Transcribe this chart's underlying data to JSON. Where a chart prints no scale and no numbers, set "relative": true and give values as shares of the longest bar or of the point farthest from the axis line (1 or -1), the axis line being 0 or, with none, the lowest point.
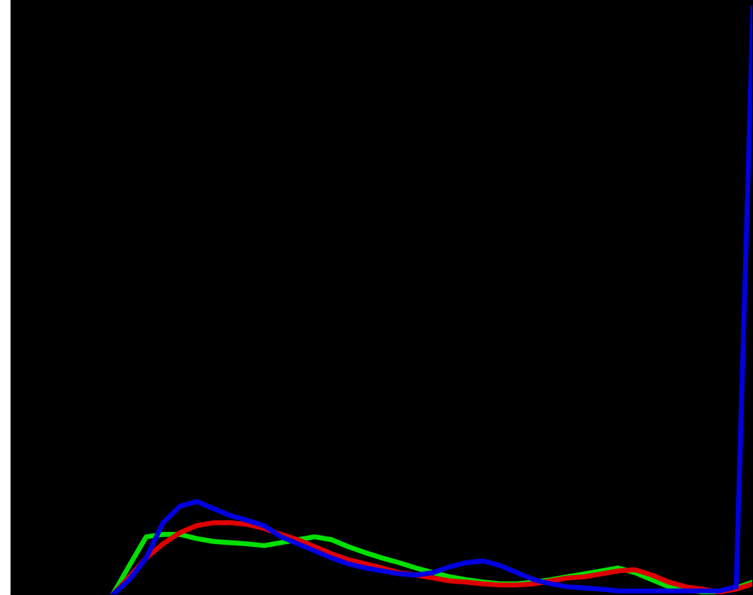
{
  "chart_data": {
    "type": "line",
    "relative": true,
    "categories": [
      null,
      null,
      null,
      null,
      null,
      null,
      null,
      null,
      null,
      null,
      null,
      null,
      null,
      null,
      null,
      null,
      null,
      null,
      null,
      null,
      null,
      null,
      null,
      null,
      null,
      null,
      null,
      null,
      null,
      null,
      null,
      null,
      null,
      null,
      null,
      null,
      null,
      null,
      null,
      null,
      null,
      null,
      null,
      null,
      null
    ],
    "series": [
      {
        "color": "#00e000",
        "values": [
          null,
          null,
          null,
          null,
          null,
          null,
          0,
          0.05,
          0.099,
          0.103,
          0.103,
          0.096,
          0.091,
          0.089,
          0.087,
          0.084,
          0.089,
          0.094,
          0.099,
          0.094,
          0.082,
          0.072,
          0.063,
          0.055,
          0.046,
          0.038,
          0.031,
          0.026,
          0.022,
          0.019,
          0.019,
          0.022,
          0.026,
          0.031,
          0.036,
          0.041,
          0.046,
          0.038,
          0.026,
          0.014,
          0.01,
          0.005,
          0.005,
          0.012,
          0.022
        ]
      },
      {
        "color": "#e00000",
        "values": [
          null,
          null,
          null,
          null,
          null,
          null,
          0,
          0.031,
          0.063,
          0.087,
          0.106,
          0.118,
          0.123,
          0.123,
          0.12,
          0.113,
          0.103,
          0.094,
          0.082,
          0.07,
          0.06,
          0.053,
          0.046,
          0.038,
          0.034,
          0.029,
          0.024,
          0.022,
          0.019,
          0.017,
          0.017,
          0.019,
          0.024,
          0.029,
          0.031,
          0.036,
          0.041,
          0.043,
          0.034,
          0.022,
          0.014,
          0.01,
          0.005,
          0.01,
          0.019
        ]
      },
      {
        "color": "#0000e0",
        "values": [
          null,
          null,
          null,
          null,
          null,
          null,
          0,
          0.026,
          0.063,
          0.123,
          0.151,
          0.159,
          0.147,
          0.135,
          0.127,
          0.118,
          0.099,
          0.087,
          0.075,
          0.063,
          0.053,
          0.046,
          0.041,
          0.036,
          0.034,
          0.038,
          0.048,
          0.055,
          0.058,
          0.05,
          0.038,
          0.026,
          0.019,
          0.014,
          0.012,
          0.01,
          0.007,
          0.007,
          0.007,
          0.007,
          0.007,
          0.007,
          0.007,
          0.014,
          1
        ]
      }
    ]
  }
}
